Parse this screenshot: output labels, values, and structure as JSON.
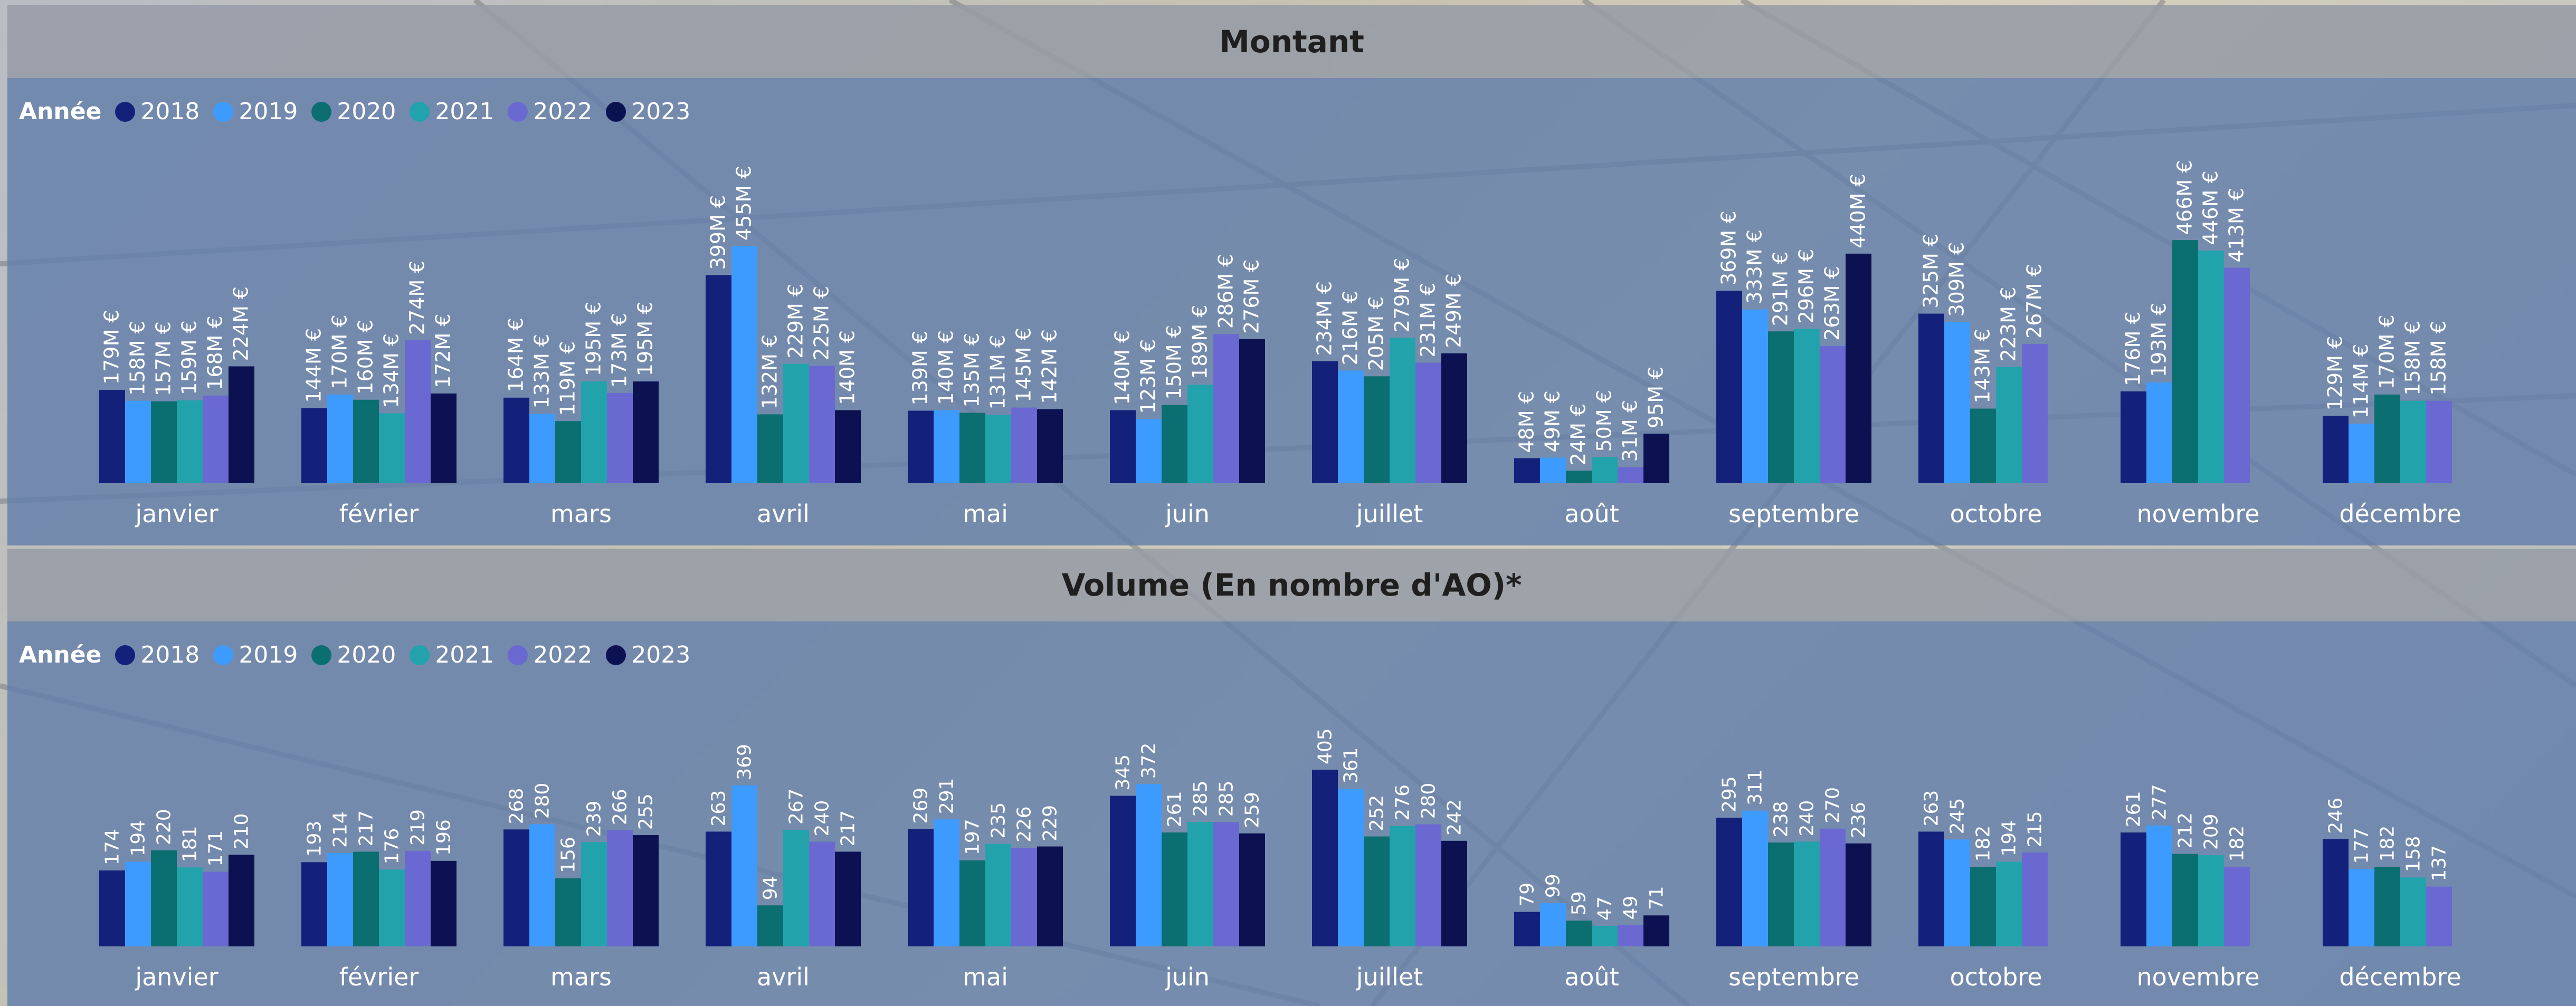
{
  "legend_title": "Année",
  "colors": [
    "#14217a",
    "#3d9bff",
    "#0b6e70",
    "#22a3ac",
    "#6a69d2",
    "#0c1152"
  ],
  "charts": [
    {
      "title": "Montant",
      "chart_data": {
        "type": "bar",
        "title": "Montant",
        "legend_title": "Année",
        "categories": [
          "janvier",
          "février",
          "mars",
          "avril",
          "mai",
          "juin",
          "juillet",
          "août",
          "septembre",
          "octobre",
          "novembre",
          "décembre"
        ],
        "series": [
          {
            "name": "2018",
            "values": [
              179,
              144,
              164,
              399,
              139,
              140,
              234,
              48,
              369,
              325,
              176,
              129
            ],
            "labels": [
              "179M €",
              "144M €",
              "164M €",
              "399M €",
              "139M €",
              "140M €",
              "234M €",
              "48M €",
              "369M €",
              "325M €",
              "176M €",
              "129M €"
            ]
          },
          {
            "name": "2019",
            "values": [
              158,
              170,
              133,
              455,
              140,
              123,
              216,
              49,
              333,
              309,
              193,
              114
            ],
            "labels": [
              "158M €",
              "170M €",
              "133M €",
              "455M €",
              "140M €",
              "123M €",
              "216M €",
              "49M €",
              "333M €",
              "309M €",
              "193M €",
              "114M €"
            ]
          },
          {
            "name": "2020",
            "values": [
              157,
              160,
              119,
              132,
              135,
              150,
              205,
              24,
              291,
              143,
              466,
              170
            ],
            "labels": [
              "157M €",
              "160M €",
              "119M €",
              "132M €",
              "135M €",
              "150M €",
              "205M €",
              "24M €",
              "291M €",
              "143M €",
              "466M €",
              "170M €"
            ]
          },
          {
            "name": "2021",
            "values": [
              159,
              134,
              195,
              229,
              131,
              189,
              279,
              50,
              296,
              223,
              446,
              158
            ],
            "labels": [
              "159M €",
              "134M €",
              "195M €",
              "229M €",
              "131M €",
              "189M €",
              "279M €",
              "50M €",
              "296M €",
              "223M €",
              "446M €",
              "158M €"
            ]
          },
          {
            "name": "2022",
            "values": [
              168,
              274,
              173,
              225,
              145,
              286,
              231,
              31,
              263,
              267,
              413,
              158
            ],
            "labels": [
              "168M €",
              "274M €",
              "173M €",
              "225M €",
              "145M €",
              "286M €",
              "231M €",
              "31M €",
              "263M €",
              "267M €",
              "413M €",
              "158M €"
            ]
          },
          {
            "name": "2023",
            "values": [
              224,
              172,
              195,
              140,
              142,
              276,
              249,
              95,
              440,
              null,
              null,
              null
            ],
            "labels": [
              "224M €",
              "172M €",
              "195M €",
              "140M €",
              "142M €",
              "276M €",
              "249M €",
              "95M €",
              "440M €",
              "",
              "",
              ""
            ]
          }
        ],
        "unit": "M €",
        "legend_position": "top-left",
        "grid": false
      }
    },
    {
      "title": "Volume (En nombre d'AO)*",
      "chart_data": {
        "type": "bar",
        "title": "Volume (En nombre d'AO)*",
        "legend_title": "Année",
        "categories": [
          "janvier",
          "février",
          "mars",
          "avril",
          "mai",
          "juin",
          "juillet",
          "août",
          "septembre",
          "octobre",
          "novembre",
          "décembre"
        ],
        "series": [
          {
            "name": "2018",
            "values": [
              174,
              193,
              268,
              263,
              269,
              345,
              405,
              79,
              295,
              263,
              261,
              246
            ],
            "labels": [
              "174",
              "193",
              "268",
              "263",
              "269",
              "345",
              "405",
              "79",
              "295",
              "263",
              "261",
              "246"
            ]
          },
          {
            "name": "2019",
            "values": [
              194,
              214,
              280,
              369,
              291,
              372,
              361,
              99,
              311,
              245,
              277,
              177
            ],
            "labels": [
              "194",
              "214",
              "280",
              "369",
              "291",
              "372",
              "361",
              "99",
              "311",
              "245",
              "277",
              "177"
            ]
          },
          {
            "name": "2020",
            "values": [
              220,
              217,
              156,
              94,
              197,
              261,
              252,
              59,
              238,
              182,
              212,
              182
            ],
            "labels": [
              "220",
              "217",
              "156",
              "94",
              "197",
              "261",
              "252",
              "59",
              "238",
              "182",
              "212",
              "182"
            ]
          },
          {
            "name": "2021",
            "values": [
              181,
              176,
              239,
              267,
              235,
              285,
              276,
              47,
              240,
              194,
              209,
              158
            ],
            "labels": [
              "181",
              "176",
              "239",
              "267",
              "235",
              "285",
              "276",
              "47",
              "240",
              "194",
              "209",
              "158"
            ]
          },
          {
            "name": "2022",
            "values": [
              171,
              219,
              266,
              240,
              226,
              285,
              280,
              49,
              270,
              215,
              182,
              137
            ],
            "labels": [
              "171",
              "219",
              "266",
              "240",
              "226",
              "285",
              "280",
              "49",
              "270",
              "215",
              "182",
              "137"
            ]
          },
          {
            "name": "2023",
            "values": [
              210,
              196,
              255,
              217,
              229,
              259,
              242,
              71,
              236,
              null,
              null,
              null
            ],
            "labels": [
              "210",
              "196",
              "255",
              "217",
              "229",
              "259",
              "242",
              "71",
              "236",
              "",
              "",
              ""
            ]
          }
        ],
        "legend_position": "top-left",
        "grid": false
      }
    }
  ]
}
